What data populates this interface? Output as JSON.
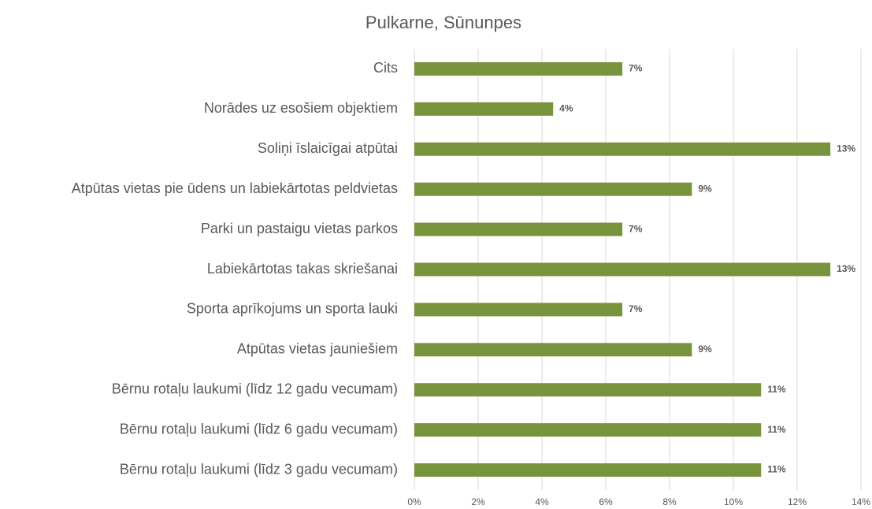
{
  "chart_data": {
    "type": "hbar",
    "title": "Pulkarne, Sūnunpes",
    "categories": [
      "Cits",
      "Norādes uz esošiem objektiem",
      "Soliņi īslaicīgai atpūtai",
      "Atpūtas vietas pie ūdens un labiekārtotas peldvietas",
      "Parki un pastaigu vietas parkos",
      "Labiekārtotas takas skriešanai",
      "Sporta aprīkojums un sporta lauki",
      "Atpūtas vietas jauniešiem",
      "Bērnu rotaļu laukumi (līdz 12 gadu vecumam)",
      "Bērnu rotaļu laukumi (līdz 6 gadu vecumam)",
      "Bērnu rotaļu laukumi (līdz 3 gadu vecumam)"
    ],
    "values": [
      6.52,
      4.35,
      13.04,
      8.7,
      6.52,
      13.04,
      6.52,
      8.7,
      10.87,
      10.87,
      10.87
    ],
    "value_labels": [
      "7%",
      "4%",
      "13%",
      "9%",
      "7%",
      "13%",
      "7%",
      "9%",
      "11%",
      "11%",
      "11%"
    ],
    "color": "#77933c",
    "xlim": [
      0,
      14
    ],
    "xticks": [
      {
        "value": 0,
        "label": "0%"
      },
      {
        "value": 2,
        "label": "2%"
      },
      {
        "value": 4,
        "label": "4%"
      },
      {
        "value": 6,
        "label": "6%"
      },
      {
        "value": 8,
        "label": "8%"
      },
      {
        "value": 10,
        "label": "10%"
      },
      {
        "value": 12,
        "label": "12%"
      },
      {
        "value": 14,
        "label": "14%"
      }
    ],
    "grid": true
  }
}
